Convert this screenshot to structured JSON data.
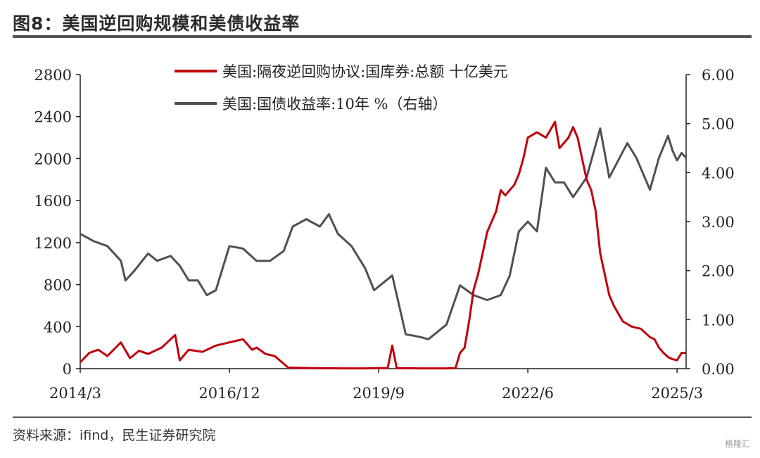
{
  "title": "图8：美国逆回购规模和美债收益率",
  "source": "资料来源：ifind，民生证券研究院",
  "watermark": "格隆汇",
  "chart_data": {
    "type": "line",
    "x_ticks": [
      "2014/3",
      "2016/12",
      "2019/9",
      "2022/6",
      "2025/3"
    ],
    "x_range": [
      "2014/3",
      "2025/5"
    ],
    "y_left": {
      "ticks": [
        "0",
        "400",
        "800",
        "1200",
        "1600",
        "2000",
        "2400",
        "2800"
      ],
      "lim": [
        0,
        2800
      ]
    },
    "y_right": {
      "ticks": [
        "0.00",
        "1.00",
        "2.00",
        "3.00",
        "4.00",
        "5.00",
        "6.00"
      ],
      "lim": [
        0,
        6
      ]
    },
    "legend_placement": "top-center",
    "series": [
      {
        "name": "美国:隔夜逆回购协议:国库券:总额 十亿美元",
        "axis": "left",
        "color": "#c0000b",
        "points": [
          [
            "2014/3",
            60
          ],
          [
            "2014/5",
            150
          ],
          [
            "2014/7",
            180
          ],
          [
            "2014/9",
            120
          ],
          [
            "2014/12",
            250
          ],
          [
            "2015/2",
            100
          ],
          [
            "2015/4",
            170
          ],
          [
            "2015/6",
            140
          ],
          [
            "2015/9",
            200
          ],
          [
            "2015/12",
            320
          ],
          [
            "2016/1",
            80
          ],
          [
            "2016/3",
            180
          ],
          [
            "2016/6",
            160
          ],
          [
            "2016/9",
            220
          ],
          [
            "2016/12",
            250
          ],
          [
            "2017/3",
            280
          ],
          [
            "2017/5",
            180
          ],
          [
            "2017/6",
            200
          ],
          [
            "2017/8",
            140
          ],
          [
            "2017/10",
            120
          ],
          [
            "2018/1",
            10
          ],
          [
            "2018/6",
            5
          ],
          [
            "2019/1",
            3
          ],
          [
            "2019/6",
            3
          ],
          [
            "2019/9",
            5
          ],
          [
            "2019/11",
            5
          ],
          [
            "2019/12",
            220
          ],
          [
            "2020/1",
            5
          ],
          [
            "2020/6",
            3
          ],
          [
            "2020/12",
            3
          ],
          [
            "2021/2",
            5
          ],
          [
            "2021/3",
            150
          ],
          [
            "2021/4",
            200
          ],
          [
            "2021/5",
            450
          ],
          [
            "2021/6",
            750
          ],
          [
            "2021/7",
            900
          ],
          [
            "2021/8",
            1100
          ],
          [
            "2021/9",
            1300
          ],
          [
            "2021/10",
            1400
          ],
          [
            "2021/11",
            1500
          ],
          [
            "2021/12",
            1700
          ],
          [
            "2022/1",
            1650
          ],
          [
            "2022/2",
            1700
          ],
          [
            "2022/3",
            1750
          ],
          [
            "2022/4",
            1850
          ],
          [
            "2022/5",
            2000
          ],
          [
            "2022/6",
            2200
          ],
          [
            "2022/8",
            2250
          ],
          [
            "2022/10",
            2200
          ],
          [
            "2022/12",
            2350
          ],
          [
            "2023/1",
            2100
          ],
          [
            "2023/3",
            2200
          ],
          [
            "2023/4",
            2300
          ],
          [
            "2023/5",
            2200
          ],
          [
            "2023/6",
            2000
          ],
          [
            "2023/7",
            1800
          ],
          [
            "2023/8",
            1700
          ],
          [
            "2023/9",
            1500
          ],
          [
            "2023/10",
            1100
          ],
          [
            "2023/11",
            900
          ],
          [
            "2023/12",
            700
          ],
          [
            "2024/1",
            600
          ],
          [
            "2024/3",
            450
          ],
          [
            "2024/5",
            400
          ],
          [
            "2024/7",
            380
          ],
          [
            "2024/9",
            300
          ],
          [
            "2024/10",
            280
          ],
          [
            "2024/11",
            200
          ],
          [
            "2024/12",
            150
          ],
          [
            "2025/1",
            110
          ],
          [
            "2025/2",
            90
          ],
          [
            "2025/3",
            80
          ],
          [
            "2025/4",
            150
          ],
          [
            "2025/5",
            150
          ]
        ]
      },
      {
        "name": "美国:国债收益率:10年 %（右轴）",
        "axis": "right",
        "color": "#505050",
        "points": [
          [
            "2014/3",
            2.75
          ],
          [
            "2014/6",
            2.6
          ],
          [
            "2014/9",
            2.5
          ],
          [
            "2014/12",
            2.2
          ],
          [
            "2015/1",
            1.8
          ],
          [
            "2015/3",
            2.0
          ],
          [
            "2015/6",
            2.35
          ],
          [
            "2015/8",
            2.2
          ],
          [
            "2015/11",
            2.3
          ],
          [
            "2016/1",
            2.1
          ],
          [
            "2016/3",
            1.8
          ],
          [
            "2016/5",
            1.8
          ],
          [
            "2016/7",
            1.5
          ],
          [
            "2016/9",
            1.6
          ],
          [
            "2016/11",
            2.2
          ],
          [
            "2016/12",
            2.5
          ],
          [
            "2017/3",
            2.45
          ],
          [
            "2017/6",
            2.2
          ],
          [
            "2017/9",
            2.2
          ],
          [
            "2017/12",
            2.4
          ],
          [
            "2018/2",
            2.9
          ],
          [
            "2018/5",
            3.05
          ],
          [
            "2018/8",
            2.9
          ],
          [
            "2018/10",
            3.15
          ],
          [
            "2018/12",
            2.75
          ],
          [
            "2019/3",
            2.5
          ],
          [
            "2019/6",
            2.05
          ],
          [
            "2019/8",
            1.6
          ],
          [
            "2019/10",
            1.75
          ],
          [
            "2019/12",
            1.9
          ],
          [
            "2020/3",
            0.7
          ],
          [
            "2020/6",
            0.65
          ],
          [
            "2020/8",
            0.6
          ],
          [
            "2020/12",
            0.9
          ],
          [
            "2021/3",
            1.7
          ],
          [
            "2021/6",
            1.5
          ],
          [
            "2021/9",
            1.4
          ],
          [
            "2021/12",
            1.5
          ],
          [
            "2022/2",
            1.9
          ],
          [
            "2022/4",
            2.8
          ],
          [
            "2022/6",
            3.0
          ],
          [
            "2022/8",
            2.8
          ],
          [
            "2022/10",
            4.1
          ],
          [
            "2022/12",
            3.8
          ],
          [
            "2023/2",
            3.8
          ],
          [
            "2023/4",
            3.5
          ],
          [
            "2023/7",
            3.9
          ],
          [
            "2023/10",
            4.9
          ],
          [
            "2023/12",
            3.9
          ],
          [
            "2024/2",
            4.25
          ],
          [
            "2024/4",
            4.6
          ],
          [
            "2024/6",
            4.3
          ],
          [
            "2024/9",
            3.65
          ],
          [
            "2024/11",
            4.3
          ],
          [
            "2025/1",
            4.75
          ],
          [
            "2025/2",
            4.45
          ],
          [
            "2025/3",
            4.25
          ],
          [
            "2025/4",
            4.4
          ],
          [
            "2025/5",
            4.3
          ]
        ]
      }
    ]
  }
}
